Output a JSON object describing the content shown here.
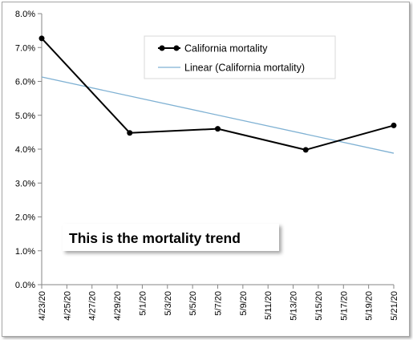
{
  "chart_data": {
    "type": "line",
    "title": "",
    "xlabel": "",
    "ylabel": "",
    "ylim": [
      0,
      0.08
    ],
    "xlim": [
      "2020-04-23",
      "2020-05-21"
    ],
    "grid": {
      "horizontal": false,
      "vertical": false
    },
    "legend_position": "top-right",
    "x_tick_labels": [
      "4/23/20",
      "4/25/20",
      "4/27/20",
      "4/29/20",
      "5/1/20",
      "5/3/20",
      "5/5/20",
      "5/7/20",
      "5/9/20",
      "5/11/20",
      "5/13/20",
      "5/15/20",
      "5/17/20",
      "5/19/20",
      "5/21/20"
    ],
    "y_tick_values": [
      0,
      0.01,
      0.02,
      0.03,
      0.04,
      0.05,
      0.06,
      0.07,
      0.08
    ],
    "y_tick_labels": [
      "0.0%",
      "1.0%",
      "2.0%",
      "3.0%",
      "4.0%",
      "5.0%",
      "6.0%",
      "7.0%",
      "8.0%"
    ],
    "series": [
      {
        "name": "California mortality",
        "color": "#000000",
        "marker": "circle",
        "x": [
          "2020-04-23",
          "2020-04-30",
          "2020-05-07",
          "2020-05-14",
          "2020-05-21"
        ],
        "y": [
          0.0727,
          0.0448,
          0.046,
          0.0398,
          0.047
        ]
      },
      {
        "name": "Linear (California mortality)",
        "color": "#7fb1d3",
        "marker": "none",
        "x": [
          "2020-04-23",
          "2020-05-21"
        ],
        "y": [
          0.0613,
          0.0388
        ]
      }
    ],
    "annotations": [
      "This is the mortality trend"
    ]
  }
}
